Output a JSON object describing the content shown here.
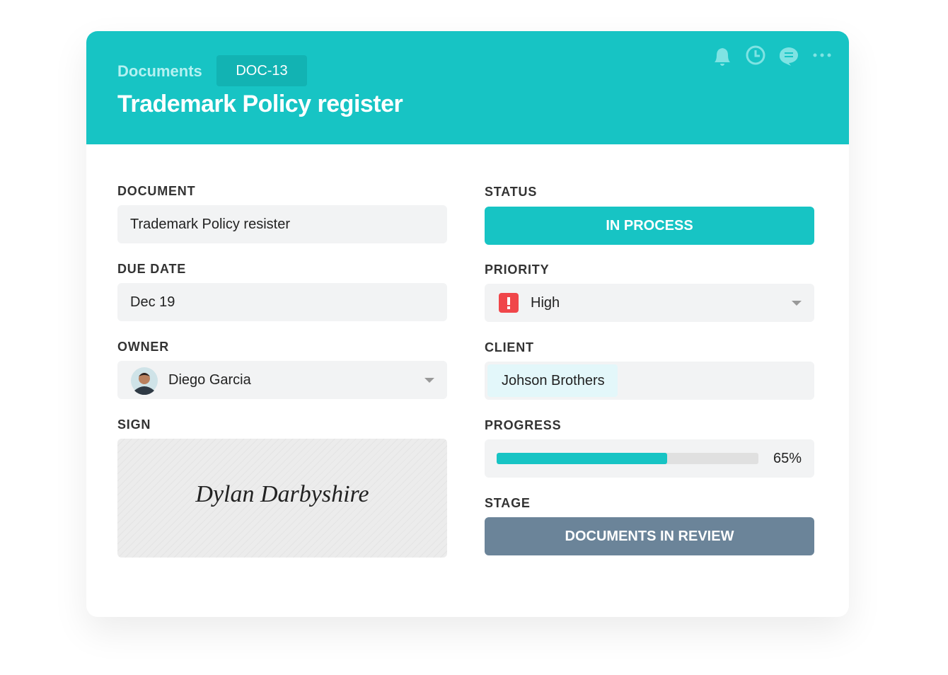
{
  "header": {
    "breadcrumb": "Documents",
    "doc_id": "DOC-13",
    "title": "Trademark Policy register"
  },
  "fields": {
    "document": {
      "label": "DOCUMENT",
      "value": "Trademark Policy resister"
    },
    "due_date": {
      "label": "DUE DATE",
      "value": "Dec 19"
    },
    "owner": {
      "label": "OWNER",
      "value": "Diego Garcia"
    },
    "sign": {
      "label": "SIGN",
      "value": "Dylan Darbyshire"
    },
    "status": {
      "label": "STATUS",
      "value": "IN PROCESS"
    },
    "priority": {
      "label": "PRIORITY",
      "value": "High"
    },
    "client": {
      "label": "CLIENT",
      "value": "Johson Brothers"
    },
    "progress": {
      "label": "PROGRESS",
      "value": 65,
      "value_label": "65%"
    },
    "stage": {
      "label": "STAGE",
      "value": "DOCUMENTS IN REVIEW"
    }
  }
}
